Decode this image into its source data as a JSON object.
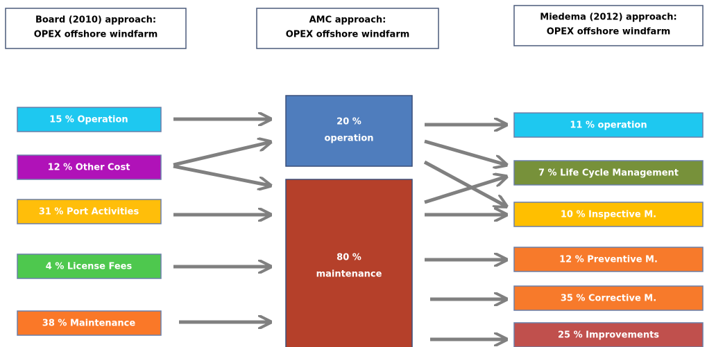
{
  "headers": [
    {
      "line1": "Board (2010) approach:",
      "line2": "OPEX offshore windfarm"
    },
    {
      "line1": "AMC approach:",
      "line2": "OPEX offshore windfarm"
    },
    {
      "line1": "Miedema (2012) approach:",
      "line2": "OPEX offshore windfarm"
    }
  ],
  "left": [
    {
      "label": "15 % Operation",
      "color": "#1ec8f0"
    },
    {
      "label": "12 % Other Cost",
      "color": "#b012b8"
    },
    {
      "label": "31 % Port Activities",
      "color": "#ffbe0a"
    },
    {
      "label": "4 % License Fees",
      "color": "#4ec84e"
    },
    {
      "label": "38 % Maintenance",
      "color": "#fa7828"
    }
  ],
  "middle": [
    {
      "line1": "20 %",
      "line2": "operation",
      "color": "#4f7dbd"
    },
    {
      "line1": "80 %",
      "line2": "maintenance",
      "color": "#b5402a"
    }
  ],
  "right": [
    {
      "label": "11 % operation",
      "color": "#1ec8f0"
    },
    {
      "label": "7 % Life Cycle Management",
      "color": "#77913a"
    },
    {
      "label": "10 % Inspective M.",
      "color": "#ffbf00"
    },
    {
      "label": "12 % Preventive M.",
      "color": "#f77a2b"
    },
    {
      "label": "35 % Corrective M.",
      "color": "#f77a2b"
    },
    {
      "label": "25 % Improvements",
      "color": "#c0504d"
    }
  ]
}
